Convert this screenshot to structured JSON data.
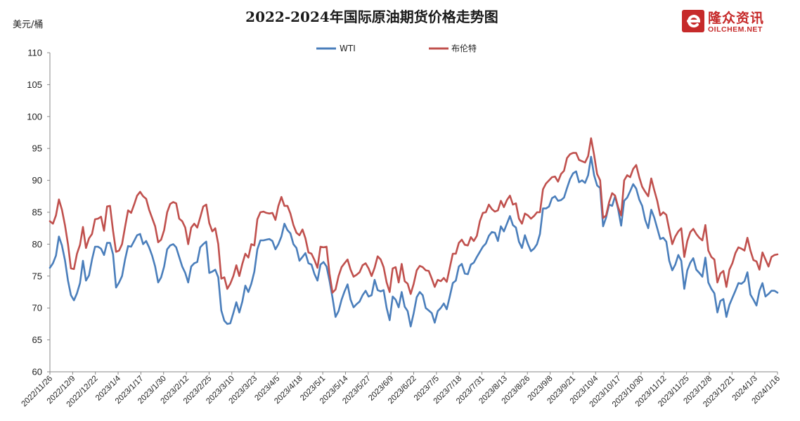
{
  "header": {
    "title": "2022-2024年国际原油期货价格走势图",
    "unit_label": "美元/桶"
  },
  "brand": {
    "name_cn": "隆众资讯",
    "name_en": "OILCHEM.NET",
    "color": "#c62a2a",
    "logo_icon": "oilchem-logo-icon"
  },
  "colors": {
    "wti": "#4a7ebb",
    "brent": "#c0504d"
  },
  "chart_data": {
    "type": "line",
    "title": "2022-2024年国际原油期货价格走势图",
    "ylabel": "美元/桶",
    "ylim": [
      60,
      110
    ],
    "yticks": [
      60,
      65,
      70,
      75,
      80,
      85,
      90,
      95,
      100,
      105,
      110
    ],
    "xticks": [
      "2022/11/26",
      "2022/12/9",
      "2022/12/22",
      "2023/1/4",
      "2023/1/17",
      "2023/1/30",
      "2023/2/12",
      "2023/2/25",
      "2023/3/10",
      "2023/3/23",
      "2023/4/5",
      "2023/4/18",
      "2023/5/1",
      "2023/5/14",
      "2023/5/27",
      "2023/6/9",
      "2023/6/22",
      "2023/7/5",
      "2023/7/18",
      "2023/7/31",
      "2023/8/13",
      "2023/8/26",
      "2023/9/8",
      "2023/9/21",
      "2023/10/4",
      "2023/10/17",
      "2023/10/30",
      "2023/11/12",
      "2023/11/25",
      "2023/12/8",
      "2023/12/21",
      "2024/1/3",
      "2024/1/16"
    ],
    "legend_position": "top",
    "grid": false,
    "series": [
      {
        "name": "WTI",
        "color": "#4a7ebb",
        "values": [
          76.3,
          77.0,
          78.2,
          81.2,
          79.8,
          77.5,
          74.3,
          72.0,
          71.2,
          72.3,
          73.9,
          77.4,
          74.3,
          75.1,
          77.6,
          79.6,
          79.6,
          79.3,
          78.3,
          80.2,
          80.2,
          78.4,
          73.2,
          74.0,
          75.0,
          77.6,
          79.7,
          79.6,
          80.5,
          81.4,
          81.6,
          80.0,
          80.5,
          79.5,
          78.2,
          76.5,
          74.0,
          74.8,
          76.5,
          79.2,
          79.8,
          80.0,
          79.5,
          78.0,
          76.5,
          75.5,
          74.0,
          76.5,
          77.0,
          77.2,
          79.5,
          80.0,
          80.4,
          75.5,
          75.7,
          76.0,
          74.8,
          69.6,
          68.0,
          67.5,
          67.6,
          69.2,
          70.9,
          69.3,
          71.0,
          73.5,
          72.5,
          73.8,
          75.7,
          79.2,
          80.6,
          80.6,
          80.7,
          80.8,
          80.5,
          79.2,
          80.0,
          81.2,
          83.2,
          82.2,
          81.7,
          80.0,
          79.4,
          77.4,
          78.0,
          78.6,
          77.0,
          76.8,
          75.3,
          74.3,
          76.8,
          77.2,
          76.5,
          74.3,
          71.6,
          68.6,
          69.5,
          71.3,
          72.6,
          73.7,
          71.3,
          70.1,
          70.6,
          71.0,
          72.0,
          72.7,
          71.8,
          72.0,
          74.4,
          72.8,
          72.6,
          72.8,
          70.0,
          68.1,
          71.8,
          71.3,
          70.1,
          72.5,
          70.2,
          69.5,
          67.1,
          69.2,
          71.7,
          72.5,
          72.0,
          70.0,
          69.6,
          69.2,
          67.7,
          69.5,
          70.0,
          70.7,
          69.8,
          71.8,
          73.9,
          74.3,
          76.5,
          76.9,
          75.4,
          75.3,
          76.8,
          77.1,
          78.0,
          78.8,
          79.6,
          80.1,
          81.3,
          81.9,
          81.8,
          80.5,
          82.8,
          82.0,
          83.2,
          84.4,
          83.0,
          82.6,
          80.4,
          79.4,
          81.4,
          80.0,
          78.9,
          79.3,
          80.0,
          81.6,
          85.6,
          85.6,
          85.9,
          87.2,
          87.5,
          86.8,
          86.9,
          87.3,
          88.8,
          90.2,
          91.1,
          91.4,
          89.7,
          90.0,
          89.6,
          90.8,
          93.7,
          90.8,
          89.2,
          88.8,
          82.8,
          84.2,
          86.2,
          86.0,
          87.5,
          85.5,
          82.9,
          86.8,
          87.3,
          88.3,
          89.4,
          88.7,
          87.0,
          86.0,
          83.8,
          82.5,
          85.4,
          84.2,
          82.5,
          80.8,
          81.0,
          80.4,
          77.4,
          75.9,
          76.8,
          78.3,
          77.4,
          73.0,
          75.9,
          77.1,
          77.8,
          76.0,
          75.5,
          74.9,
          77.9,
          74.0,
          73.0,
          72.3,
          69.3,
          71.1,
          71.4,
          68.6,
          70.5,
          71.6,
          72.7,
          73.9,
          73.8,
          74.2,
          75.6,
          72.1,
          71.3,
          70.4,
          72.7,
          73.9,
          71.8,
          72.2,
          72.7,
          72.7,
          72.4
        ]
      },
      {
        "name": "布伦特",
        "color": "#c0504d",
        "values": [
          83.6,
          83.2,
          84.5,
          87.0,
          85.4,
          83.0,
          80.0,
          76.2,
          76.1,
          78.5,
          79.9,
          82.7,
          79.4,
          80.9,
          81.6,
          83.9,
          84.0,
          84.3,
          82.1,
          85.9,
          86.0,
          82.1,
          78.8,
          79.0,
          80.0,
          82.7,
          85.3,
          84.9,
          86.2,
          87.6,
          88.2,
          87.5,
          87.1,
          85.4,
          84.1,
          82.8,
          80.3,
          80.7,
          82.2,
          85.0,
          86.3,
          86.6,
          86.4,
          84.0,
          83.6,
          82.6,
          80.0,
          82.6,
          83.2,
          82.6,
          84.2,
          85.9,
          86.2,
          83.3,
          82.0,
          82.5,
          80.0,
          74.6,
          74.8,
          73.0,
          73.8,
          75.0,
          76.7,
          75.0,
          76.9,
          78.5,
          77.9,
          80.0,
          79.8,
          83.9,
          85.0,
          85.1,
          84.9,
          84.8,
          84.9,
          83.8,
          86.0,
          87.4,
          86.0,
          86.0,
          84.8,
          83.0,
          81.8,
          81.4,
          82.3,
          80.9,
          78.7,
          78.5,
          77.5,
          76.3,
          79.6,
          79.5,
          79.6,
          75.4,
          72.4,
          72.9,
          75.0,
          76.4,
          77.0,
          77.6,
          76.0,
          74.9,
          75.2,
          75.6,
          76.7,
          77.0,
          76.2,
          75.0,
          76.3,
          78.1,
          77.6,
          76.4,
          74.0,
          72.5,
          76.2,
          76.4,
          74.0,
          76.9,
          74.2,
          73.8,
          72.2,
          73.8,
          75.9,
          76.6,
          76.4,
          75.9,
          75.8,
          74.6,
          73.3,
          74.4,
          74.2,
          74.7,
          74.1,
          76.3,
          78.5,
          78.5,
          80.2,
          80.7,
          79.9,
          79.8,
          81.1,
          80.5,
          81.3,
          83.6,
          84.9,
          85.0,
          86.2,
          85.5,
          85.1,
          85.3,
          86.8,
          85.8,
          86.9,
          87.6,
          86.2,
          86.4,
          84.0,
          83.2,
          84.8,
          84.5,
          84.0,
          84.4,
          85.0,
          85.0,
          88.6,
          89.5,
          90.0,
          90.5,
          90.6,
          89.8,
          91.0,
          91.5,
          93.5,
          94.1,
          94.3,
          94.3,
          93.2,
          93.0,
          92.8,
          93.8,
          96.6,
          94.0,
          91.0,
          90.0,
          84.1,
          84.5,
          86.6,
          88.0,
          87.6,
          85.8,
          84.5,
          90.0,
          90.8,
          90.5,
          91.8,
          92.4,
          90.5,
          89.0,
          88.2,
          87.5,
          90.3,
          88.5,
          86.8,
          84.5,
          85.0,
          84.6,
          82.3,
          80.0,
          81.2,
          82.0,
          82.5,
          78.0,
          80.5,
          81.9,
          82.4,
          81.6,
          81.0,
          80.6,
          83.0,
          79.0,
          78.0,
          77.6,
          74.0,
          75.4,
          75.8,
          73.3,
          76.0,
          77.0,
          78.6,
          79.5,
          79.3,
          79.0,
          81.0,
          79.0,
          77.5,
          77.3,
          76.0,
          78.7,
          77.6,
          76.5,
          78.0,
          78.3,
          78.4
        ]
      }
    ]
  }
}
